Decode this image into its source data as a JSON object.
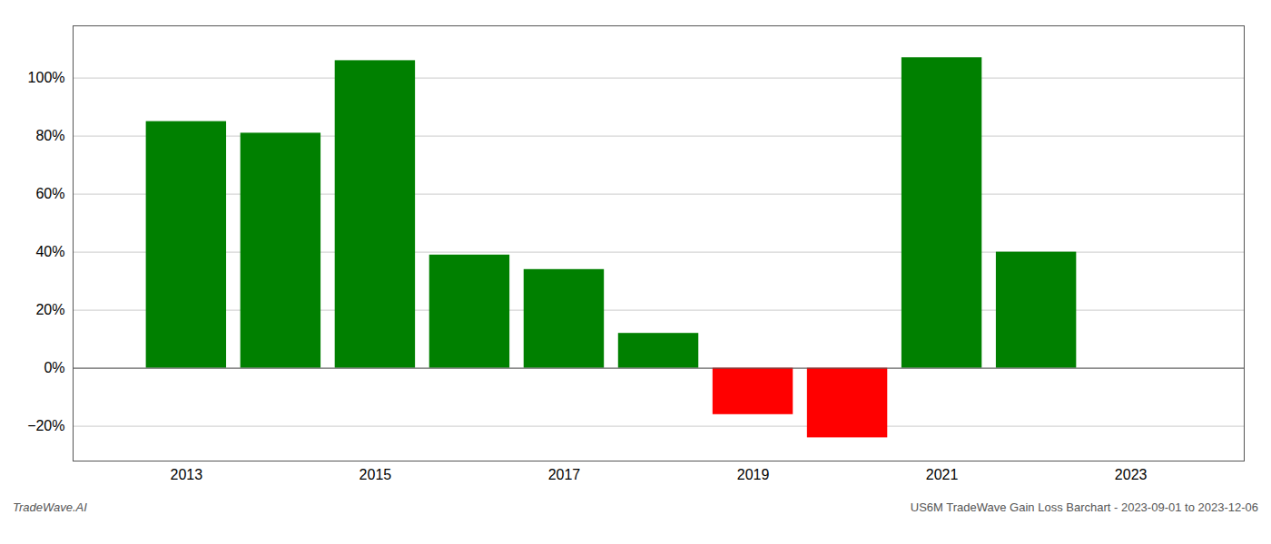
{
  "chart_data": {
    "type": "bar",
    "x": [
      2013,
      2014,
      2015,
      2016,
      2017,
      2018,
      2019,
      2020,
      2021,
      2022
    ],
    "values": [
      0.85,
      0.81,
      1.06,
      0.39,
      0.34,
      0.12,
      -0.16,
      -0.24,
      1.07,
      0.4
    ],
    "colors": [
      "#008000",
      "#008000",
      "#008000",
      "#008000",
      "#008000",
      "#008000",
      "#ff0000",
      "#ff0000",
      "#008000",
      "#008000"
    ],
    "xlim": [
      2011.8,
      2024.2
    ],
    "xticks": [
      2013,
      2015,
      2017,
      2019,
      2021,
      2023
    ],
    "ylim": [
      -0.32,
      1.18
    ],
    "yticks": [
      {
        "value": -0.2,
        "label": "−20%"
      },
      {
        "value": 0,
        "label": "0%"
      },
      {
        "value": 0.2,
        "label": "20%"
      },
      {
        "value": 0.4,
        "label": "40%"
      },
      {
        "value": 0.6,
        "label": "60%"
      },
      {
        "value": 0.8,
        "label": "80%"
      },
      {
        "value": 1.0,
        "label": "100%"
      }
    ],
    "grid": true,
    "annotations": [
      "TradeWave.AI",
      "US6M TradeWave Gain Loss Barchart - 2023-09-01 to 2023-12-06"
    ]
  }
}
